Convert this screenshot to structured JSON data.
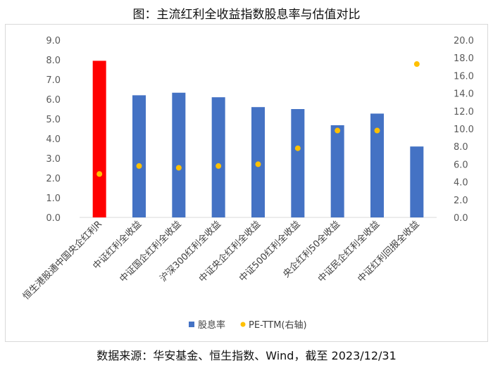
{
  "figure": {
    "title": "图：主流红利全收益指数股息率与估值对比",
    "source": "数据来源：华安基金、恒生指数、Wind，截至 2023/12/31"
  },
  "chart_data": {
    "type": "bar",
    "categories": [
      "恒生港股通中国央企红利R",
      "中证红利全收益",
      "中证国企红利全收益",
      "沪深300红利全收益",
      "中证央企红利全收益",
      "中证500红利全收益",
      "央企红利50全收益",
      "中证民企红利全收益",
      "中证红利回报全收益"
    ],
    "series": [
      {
        "name": "股息率",
        "type": "bar",
        "axis": "left",
        "values": [
          7.95,
          6.2,
          6.33,
          6.1,
          5.6,
          5.5,
          4.68,
          5.27,
          3.6
        ],
        "colors": [
          "#ff0000",
          "#4472c4",
          "#4472c4",
          "#4472c4",
          "#4472c4",
          "#4472c4",
          "#4472c4",
          "#4472c4",
          "#4472c4"
        ]
      },
      {
        "name": "PE-TTM(右轴)",
        "type": "scatter",
        "axis": "right",
        "values": [
          4.9,
          5.8,
          5.6,
          5.8,
          6.0,
          7.8,
          9.8,
          9.8,
          17.3
        ],
        "color": "#ffc000"
      }
    ],
    "y_left": {
      "min": 0,
      "max": 9,
      "step": 1,
      "ticks": [
        "0.0",
        "1.0",
        "2.0",
        "3.0",
        "4.0",
        "5.0",
        "6.0",
        "7.0",
        "8.0",
        "9.0"
      ]
    },
    "y_right": {
      "min": 0,
      "max": 20,
      "step": 2,
      "ticks": [
        "0.0",
        "2.0",
        "4.0",
        "6.0",
        "8.0",
        "10.0",
        "12.0",
        "14.0",
        "16.0",
        "18.0",
        "20.0"
      ]
    },
    "grid": false,
    "legend_position": "bottom"
  }
}
